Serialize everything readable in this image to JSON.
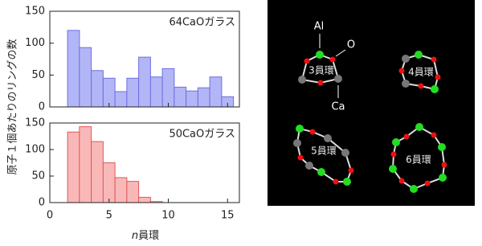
{
  "chart_data": [
    {
      "type": "histogram",
      "title": "64CaOガラス",
      "bins": [
        1.5,
        2.5,
        3.5,
        4.5,
        5.5,
        6.5,
        7.5,
        8.5,
        9.5,
        10.5,
        11.5,
        12.5,
        13.5,
        14.5,
        15.5
      ],
      "values": [
        120,
        93,
        57,
        45,
        24,
        45,
        78,
        47,
        60,
        31,
        25,
        30,
        47,
        16
      ],
      "color": "#b3b6f6",
      "edge_color": "#6b6fe0",
      "xlim": [
        0,
        16
      ],
      "xticks": [
        0,
        5,
        10,
        15
      ],
      "ylim": [
        0,
        150
      ],
      "yticks": [
        0,
        50,
        100,
        150
      ]
    },
    {
      "type": "histogram",
      "title": "50CaOガラス",
      "bins": [
        1.5,
        2.5,
        3.5,
        4.5,
        5.5,
        6.5,
        7.5,
        8.5,
        9.5
      ],
      "values": [
        133,
        143,
        115,
        75,
        47,
        40,
        10,
        2
      ],
      "color": "#f9b8b8",
      "edge_color": "#e05858",
      "xlim": [
        0,
        16
      ],
      "xticks": [
        0,
        5,
        10,
        15
      ],
      "ylim": [
        0,
        150
      ],
      "yticks": [
        0,
        50,
        100,
        150
      ]
    }
  ],
  "xlabel_var": "n",
  "xlabel": "員環",
  "ylabel": "原子１個あたりのリングの数",
  "diagram": {
    "al": "Al",
    "o": "O",
    "ca": "Ca",
    "rings": [
      "3員環",
      "4員環",
      "5員環",
      "6員環"
    ]
  }
}
